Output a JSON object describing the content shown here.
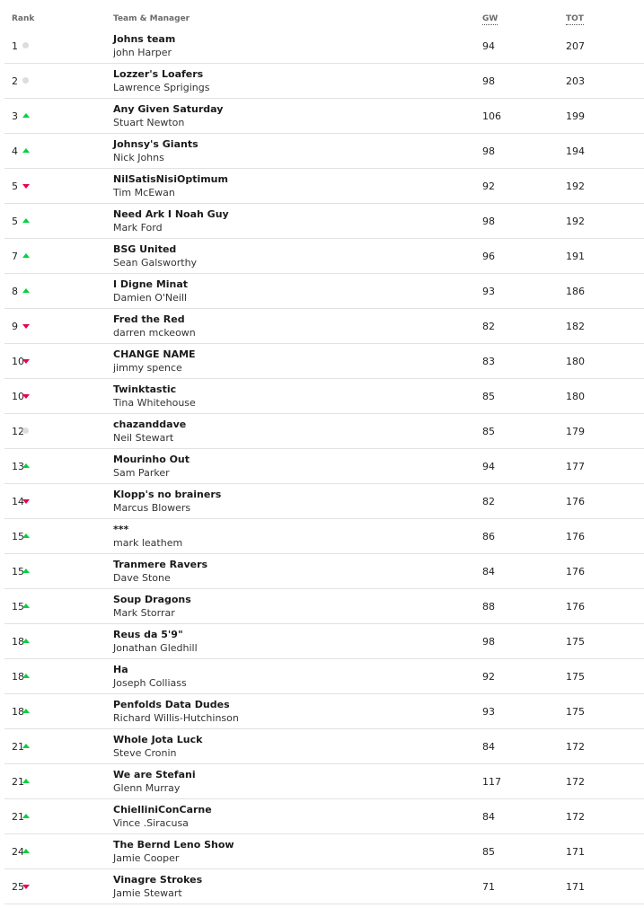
{
  "header": {
    "rank": "Rank",
    "team": "Team & Manager",
    "gw": "GW",
    "tot": "TOT"
  },
  "colors": {
    "up": "#00d23f",
    "down": "#e90052",
    "same": "#dddddd"
  },
  "rows": [
    {
      "rank": "1",
      "move": "same",
      "team": "Johns team",
      "manager": "john Harper",
      "gw": "94",
      "tot": "207"
    },
    {
      "rank": "2",
      "move": "same",
      "team": "Lozzer's Loafers",
      "manager": "Lawrence Sprigings",
      "gw": "98",
      "tot": "203"
    },
    {
      "rank": "3",
      "move": "up",
      "team": "Any Given Saturday",
      "manager": "Stuart Newton",
      "gw": "106",
      "tot": "199"
    },
    {
      "rank": "4",
      "move": "up",
      "team": "Johnsy's Giants",
      "manager": "Nick Johns",
      "gw": "98",
      "tot": "194"
    },
    {
      "rank": "5",
      "move": "down",
      "team": "NilSatisNisiOptimum",
      "manager": "Tim McEwan",
      "gw": "92",
      "tot": "192"
    },
    {
      "rank": "5",
      "move": "up",
      "team": "Need Ark I Noah Guy",
      "manager": "Mark Ford",
      "gw": "98",
      "tot": "192"
    },
    {
      "rank": "7",
      "move": "up",
      "team": "BSG United",
      "manager": "Sean Galsworthy",
      "gw": "96",
      "tot": "191"
    },
    {
      "rank": "8",
      "move": "up",
      "team": "I Digne Minat",
      "manager": "Damien O'Neill",
      "gw": "93",
      "tot": "186"
    },
    {
      "rank": "9",
      "move": "down",
      "team": "Fred the Red",
      "manager": "darren mckeown",
      "gw": "82",
      "tot": "182"
    },
    {
      "rank": "10",
      "move": "down",
      "team": "CHANGE NAME",
      "manager": "jimmy spence",
      "gw": "83",
      "tot": "180"
    },
    {
      "rank": "10",
      "move": "down",
      "team": "Twinktastic",
      "manager": "Tina Whitehouse",
      "gw": "85",
      "tot": "180"
    },
    {
      "rank": "12",
      "move": "same",
      "team": "chazanddave",
      "manager": "Neil Stewart",
      "gw": "85",
      "tot": "179"
    },
    {
      "rank": "13",
      "move": "up",
      "team": "Mourinho Out",
      "manager": "Sam Parker",
      "gw": "94",
      "tot": "177"
    },
    {
      "rank": "14",
      "move": "down",
      "team": "Klopp's no brainers",
      "manager": "Marcus Blowers",
      "gw": "82",
      "tot": "176"
    },
    {
      "rank": "15",
      "move": "up",
      "team": "***",
      "manager": "mark leathem",
      "gw": "86",
      "tot": "176"
    },
    {
      "rank": "15",
      "move": "up",
      "team": "Tranmere Ravers",
      "manager": "Dave Stone",
      "gw": "84",
      "tot": "176"
    },
    {
      "rank": "15",
      "move": "up",
      "team": "Soup Dragons",
      "manager": "Mark Storrar",
      "gw": "88",
      "tot": "176"
    },
    {
      "rank": "18",
      "move": "up",
      "team": "Reus da 5'9\"",
      "manager": "Jonathan Gledhill",
      "gw": "98",
      "tot": "175"
    },
    {
      "rank": "18",
      "move": "up",
      "team": "Ha",
      "manager": "Joseph Colliass",
      "gw": "92",
      "tot": "175"
    },
    {
      "rank": "18",
      "move": "up",
      "team": "Penfolds Data Dudes",
      "manager": "Richard Willis-Hutchinson",
      "gw": "93",
      "tot": "175"
    },
    {
      "rank": "21",
      "move": "up",
      "team": "Whole Jota Luck",
      "manager": "Steve Cronin",
      "gw": "84",
      "tot": "172"
    },
    {
      "rank": "21",
      "move": "up",
      "team": "We are Stefani",
      "manager": "Glenn Murray",
      "gw": "117",
      "tot": "172"
    },
    {
      "rank": "21",
      "move": "up",
      "team": "ChielliniConCarne",
      "manager": "Vince .Siracusa",
      "gw": "84",
      "tot": "172"
    },
    {
      "rank": "24",
      "move": "up",
      "team": "The Bernd Leno Show",
      "manager": "Jamie Cooper",
      "gw": "85",
      "tot": "171"
    },
    {
      "rank": "25",
      "move": "down",
      "team": "Vinagre Strokes",
      "manager": "Jamie Stewart",
      "gw": "71",
      "tot": "171"
    }
  ]
}
